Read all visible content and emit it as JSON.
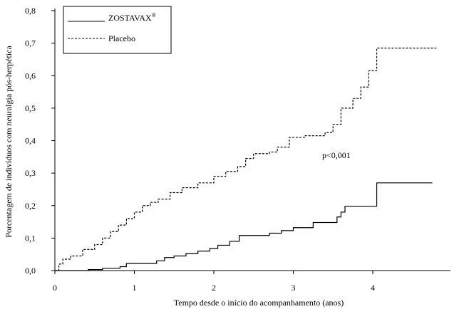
{
  "chart_data": {
    "type": "line",
    "title": "",
    "xlabel": "Tempo desde o início do acompanhamento (anos)",
    "ylabel": "Porcentagem de indivíduos com neuralgia pós-herpética",
    "xlim": [
      0,
      5
    ],
    "ylim": [
      0,
      0.8
    ],
    "x_ticks": [
      0,
      1,
      2,
      3,
      4
    ],
    "x_tick_labels": [
      "0",
      "1",
      "2",
      "3",
      "4"
    ],
    "y_ticks": [
      0,
      0.1,
      0.2,
      0.3,
      0.4,
      0.5,
      0.6,
      0.7,
      0.8
    ],
    "y_tick_labels": [
      "0,0",
      "0,1",
      "0,2",
      "0,3",
      "0,4",
      "0,5",
      "0,6",
      "0,7",
      "0,8"
    ],
    "grid": false,
    "legend_position": "top-left",
    "annotation": "p<0,001",
    "series": [
      {
        "name": "ZOSTAVAX",
        "name_superscript": "®",
        "style": "solid",
        "color": "#000000",
        "x": [
          0,
          0.42,
          0.6,
          0.82,
          0.9,
          1.28,
          1.38,
          1.5,
          1.65,
          1.8,
          1.95,
          2.05,
          2.2,
          2.32,
          2.7,
          2.85,
          3.0,
          3.25,
          3.55,
          3.6,
          3.65,
          4.05,
          4.75
        ],
        "y": [
          0,
          0.003,
          0.007,
          0.012,
          0.022,
          0.03,
          0.04,
          0.045,
          0.052,
          0.06,
          0.068,
          0.078,
          0.09,
          0.108,
          0.115,
          0.123,
          0.132,
          0.148,
          0.165,
          0.18,
          0.198,
          0.27,
          0.27
        ]
      },
      {
        "name": "Placebo",
        "style": "dashed",
        "color": "#000000",
        "x": [
          0,
          0.05,
          0.1,
          0.2,
          0.35,
          0.5,
          0.6,
          0.7,
          0.8,
          0.9,
          1.0,
          1.1,
          1.2,
          1.3,
          1.45,
          1.6,
          1.8,
          2.0,
          2.15,
          2.3,
          2.4,
          2.5,
          2.7,
          2.8,
          2.95,
          3.15,
          3.4,
          3.5,
          3.6,
          3.75,
          3.85,
          3.95,
          4.05,
          4.8
        ],
        "y": [
          0,
          0.02,
          0.035,
          0.045,
          0.065,
          0.08,
          0.1,
          0.12,
          0.14,
          0.16,
          0.18,
          0.2,
          0.21,
          0.22,
          0.24,
          0.255,
          0.27,
          0.29,
          0.305,
          0.32,
          0.345,
          0.36,
          0.365,
          0.38,
          0.41,
          0.415,
          0.425,
          0.45,
          0.5,
          0.53,
          0.565,
          0.615,
          0.685,
          0.685
        ]
      }
    ]
  }
}
